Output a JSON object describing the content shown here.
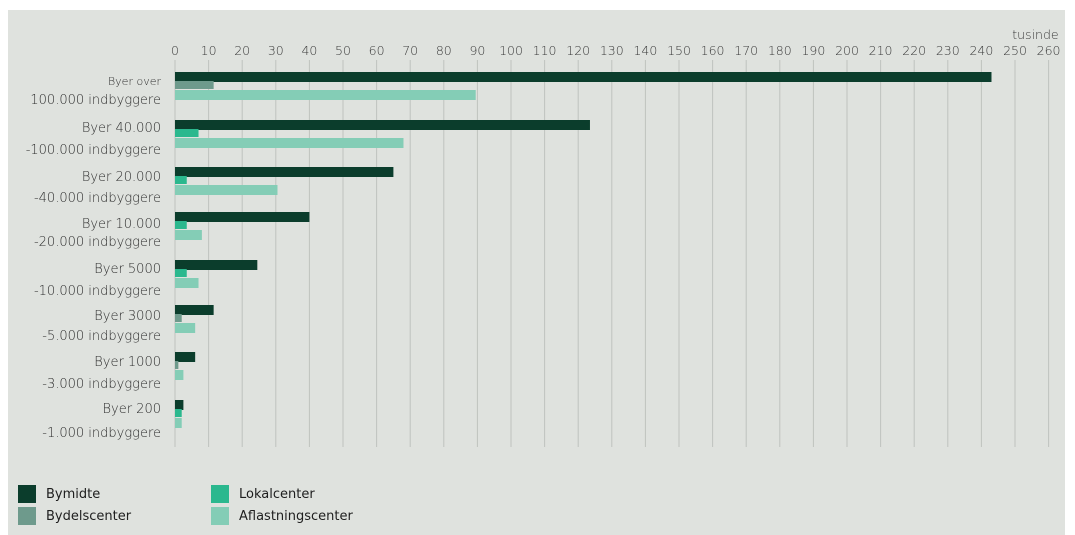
{
  "chart_data": {
    "type": "bar",
    "orientation": "horizontal",
    "unit_label": "tusinde",
    "xlim": [
      0,
      260
    ],
    "x_ticks": [
      0,
      10,
      20,
      30,
      40,
      50,
      60,
      70,
      80,
      90,
      100,
      110,
      120,
      130,
      140,
      150,
      160,
      170,
      180,
      190,
      200,
      210,
      220,
      230,
      240,
      250,
      260
    ],
    "grid": true,
    "legend_position": "bottom-left",
    "categories": [
      {
        "line1": "Byer over",
        "line2": "100.000 indbyggere"
      },
      {
        "line1": "Byer 40.000",
        "line2": "-100.000 indbyggere"
      },
      {
        "line1": "Byer 20.000",
        "line2": "-40.000 indbyggere"
      },
      {
        "line1": "Byer 10.000",
        "line2": "-20.000 indbyggere"
      },
      {
        "line1": "Byer 5000",
        "line2": "-10.000 indbyggere"
      },
      {
        "line1": "Byer 3000",
        "line2": "-5.000 indbyggere"
      },
      {
        "line1": "Byer 1000",
        "line2": "-3.000 indbyggere"
      },
      {
        "line1": "Byer 200",
        "line2": "-1.000 indbyggere"
      }
    ],
    "series": [
      {
        "name": "Bymidte",
        "color": "#0b3d2c",
        "values": [
          243,
          123.5,
          65,
          40,
          24.5,
          11.5,
          6,
          2.5
        ]
      },
      {
        "name": "Lokalcenter",
        "color": "#2bb88e",
        "values": [
          0,
          7,
          3.5,
          3.5,
          3.5,
          0,
          0,
          2
        ]
      },
      {
        "name": "Bydelscenter",
        "color": "#6e9a8c",
        "values": [
          11.5,
          2.5,
          2.5,
          2.5,
          2.5,
          2,
          1,
          0
        ]
      },
      {
        "name": "Aflastningscenter",
        "color": "#84cdb6",
        "values": [
          89.5,
          68,
          30.5,
          8,
          7,
          6,
          2.5,
          2
        ]
      }
    ]
  }
}
